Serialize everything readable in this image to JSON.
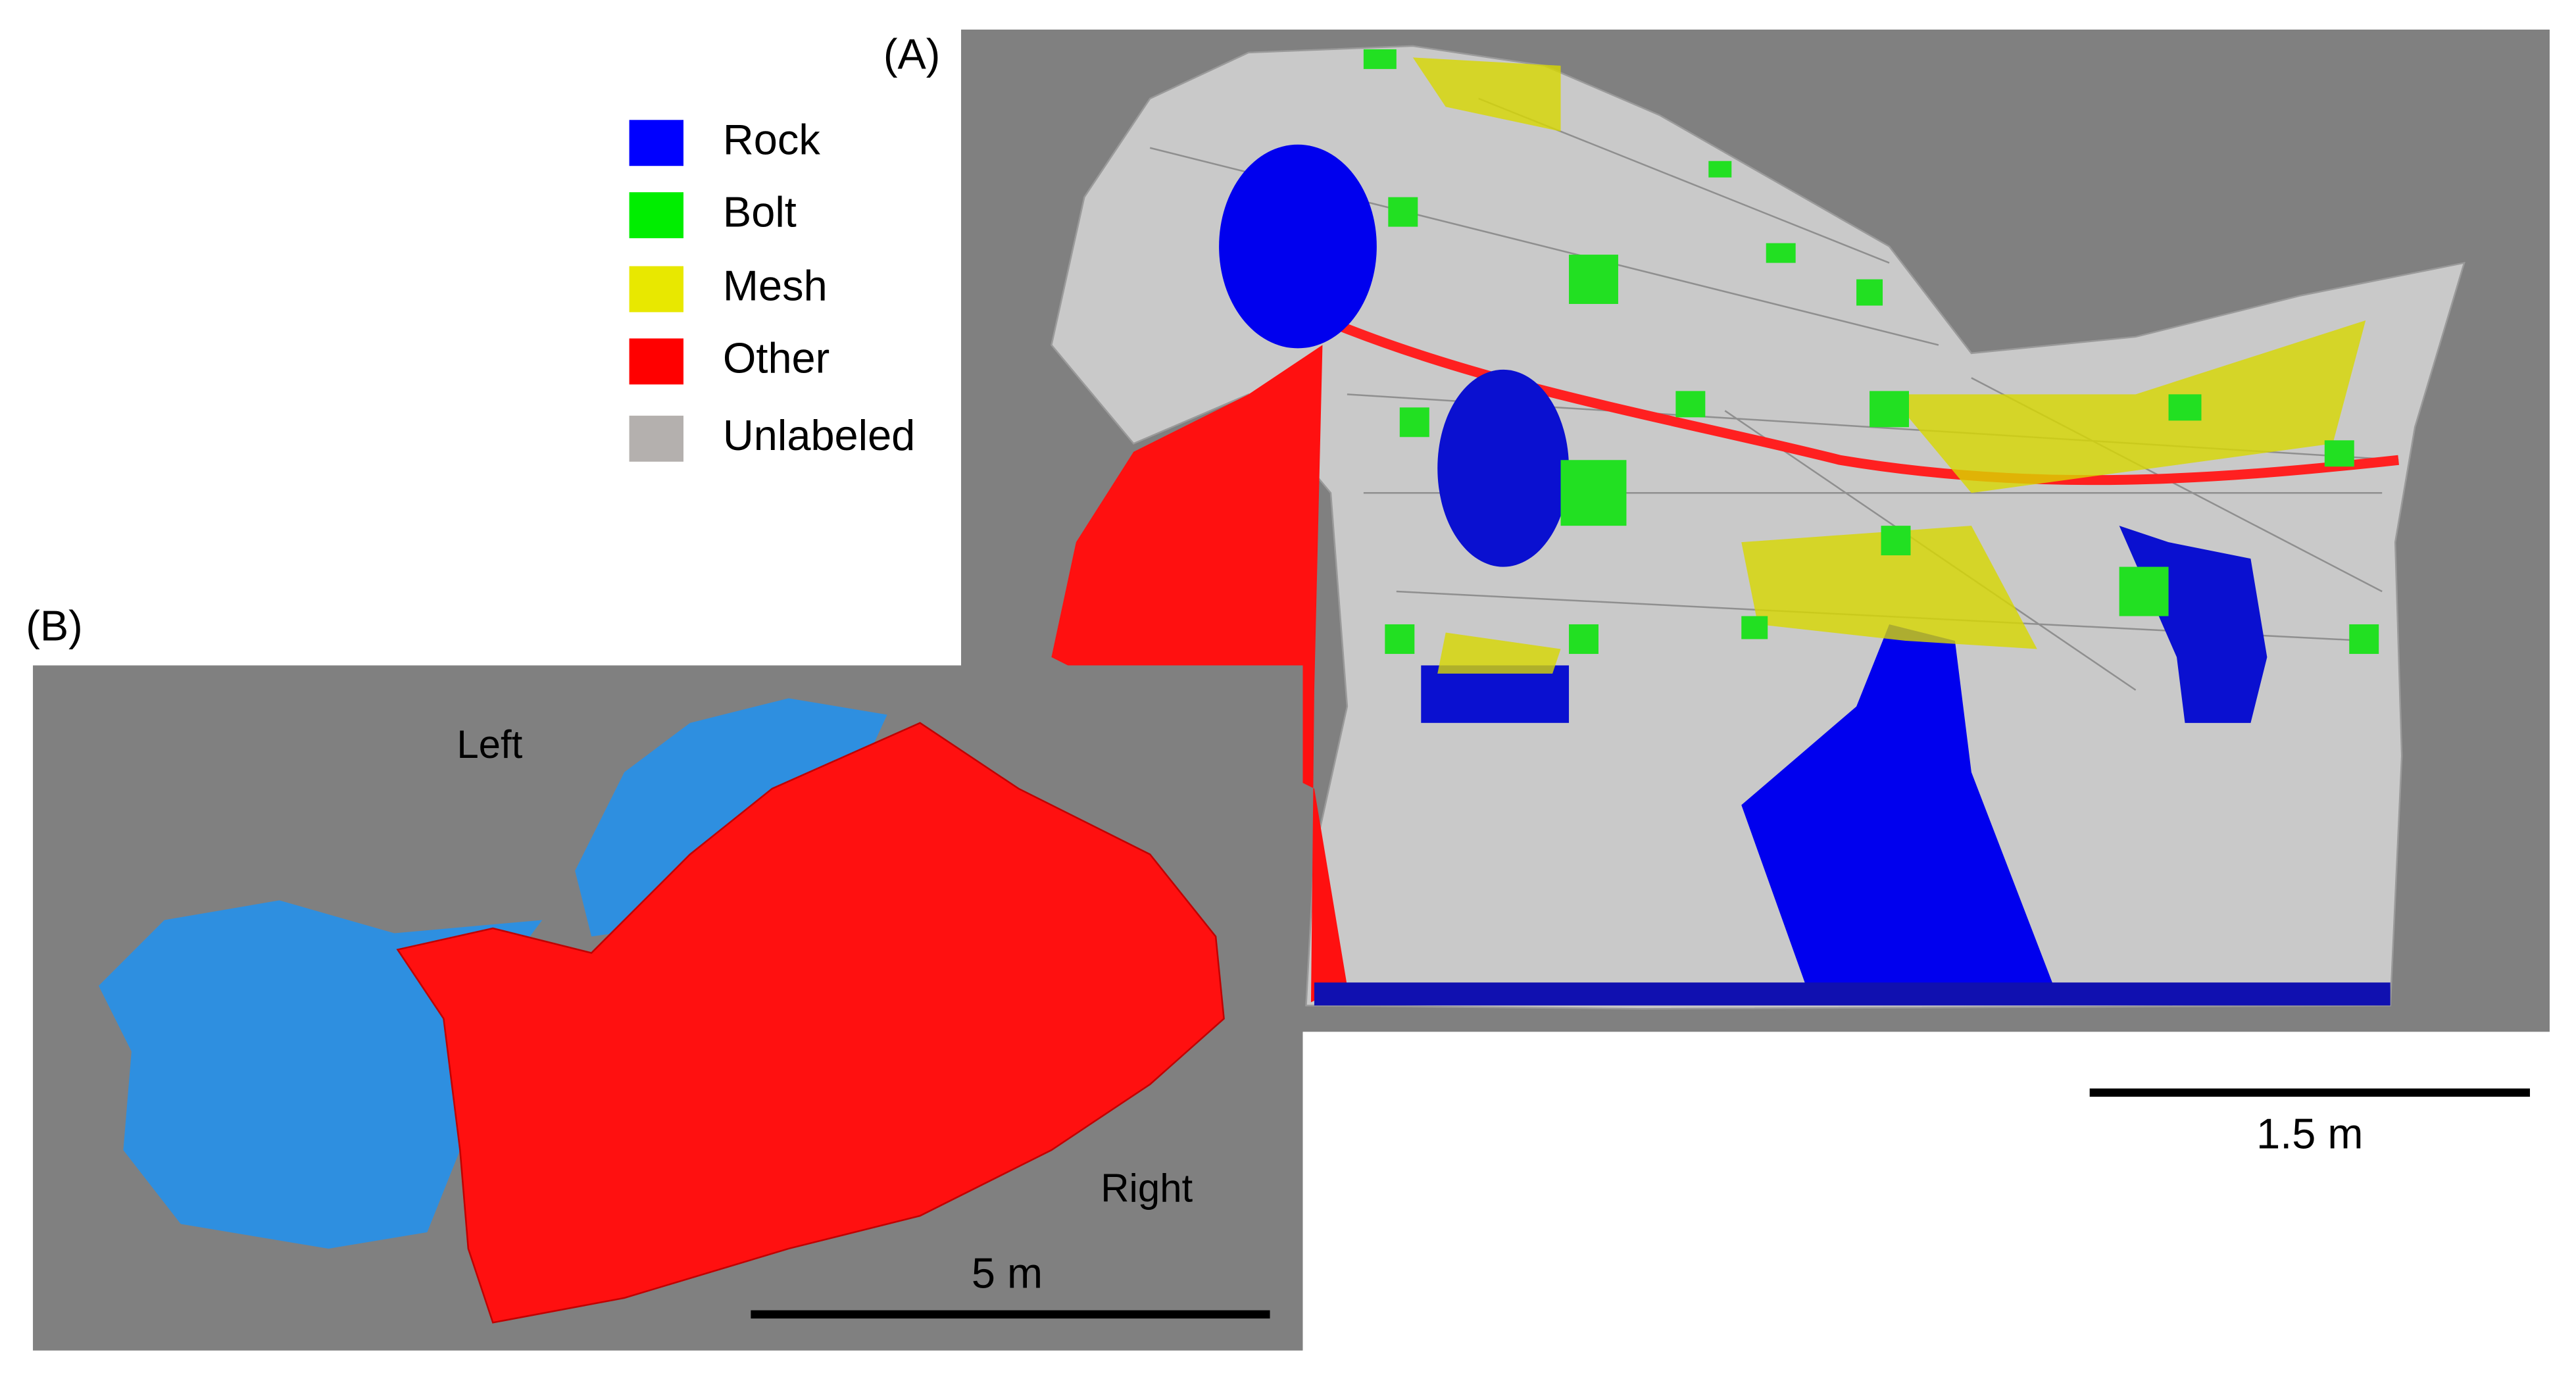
{
  "panel_a": {
    "label": "(A)",
    "scale_bar": "1.5 m"
  },
  "panel_b": {
    "label": "(B)",
    "left_label": "Left",
    "right_label": "Right",
    "scale_bar": "5 m"
  },
  "legend": [
    {
      "name": "Rock",
      "color": "#0000ff"
    },
    {
      "name": "Bolt",
      "color": "#00ee00"
    },
    {
      "name": "Mesh",
      "color": "#e8e800"
    },
    {
      "name": "Other",
      "color": "#ff0000"
    },
    {
      "name": "Unlabeled",
      "color": "#b4b0ae"
    }
  ]
}
